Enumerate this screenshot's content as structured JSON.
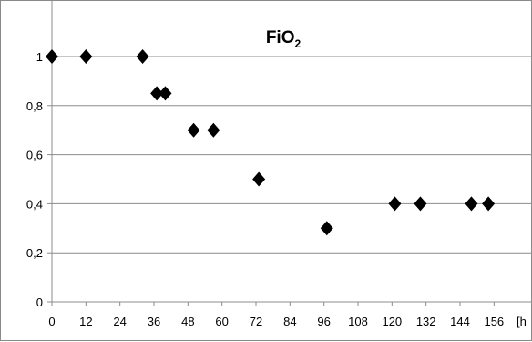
{
  "chart_data": {
    "type": "scatter",
    "title": "FiO",
    "title_subscript": "2",
    "xlabel": "",
    "ylabel": "",
    "x_unit_label": "[h",
    "xlim": [
      0,
      162
    ],
    "ylim": [
      0,
      1
    ],
    "x_ticks": [
      "0",
      "12",
      "24",
      "36",
      "48",
      "60",
      "72",
      "84",
      "96",
      "108",
      "120",
      "132",
      "144",
      "156"
    ],
    "x_tick_values": [
      0,
      12,
      24,
      36,
      48,
      60,
      72,
      84,
      96,
      108,
      120,
      132,
      144,
      156
    ],
    "y_ticks": [
      "0",
      "0,2",
      "0,4",
      "0,6",
      "0,8",
      "1"
    ],
    "y_tick_values": [
      0,
      0.2,
      0.4,
      0.6,
      0.8,
      1
    ],
    "grid": "horizontal",
    "marker": "diamond",
    "marker_color": "#000000",
    "points": [
      {
        "x": 0,
        "y": 1
      },
      {
        "x": 12,
        "y": 1
      },
      {
        "x": 32,
        "y": 1
      },
      {
        "x": 37,
        "y": 0.85
      },
      {
        "x": 40,
        "y": 0.85
      },
      {
        "x": 50,
        "y": 0.7
      },
      {
        "x": 57,
        "y": 0.7
      },
      {
        "x": 73,
        "y": 0.5
      },
      {
        "x": 97,
        "y": 0.3
      },
      {
        "x": 121,
        "y": 0.4
      },
      {
        "x": 130,
        "y": 0.4
      },
      {
        "x": 148,
        "y": 0.4
      },
      {
        "x": 154,
        "y": 0.4
      }
    ]
  }
}
